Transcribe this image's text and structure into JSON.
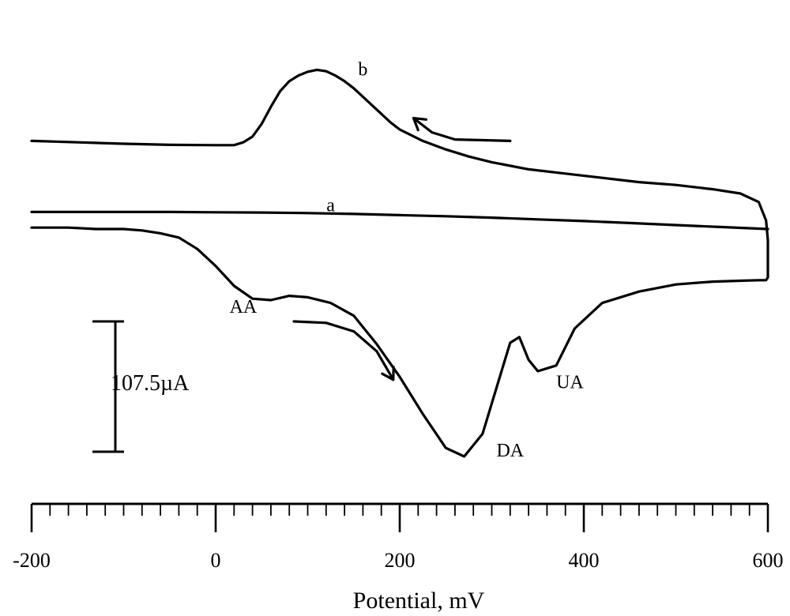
{
  "chart_data": {
    "type": "line",
    "title": "",
    "xlabel": "Potential, mV",
    "ylabel": "",
    "xlim": [
      -200,
      600
    ],
    "x_ticks": [
      -200,
      0,
      200,
      400,
      600
    ],
    "x_tick_labels": [
      "-200",
      "0",
      "200",
      "400",
      "600"
    ],
    "x_minor_step": 20,
    "grid": false,
    "scale_bar": {
      "label": "107.5µA",
      "value_uA": 107.5
    },
    "series": [
      {
        "name": "a",
        "x": [
          -200,
          -150,
          -100,
          -50,
          0,
          50,
          100,
          150,
          200,
          250,
          300,
          350,
          400,
          450,
          500,
          550,
          600
        ],
        "y": [
          0.6,
          0.6,
          0.6,
          0.6,
          0.59,
          0.58,
          0.56,
          0.53,
          0.49,
          0.45,
          0.4,
          0.34,
          0.28,
          0.21,
          0.14,
          0.07,
          0.0
        ]
      },
      {
        "name": "b",
        "x": [
          -200,
          -150,
          -100,
          -50,
          0,
          20,
          30,
          40,
          50,
          60,
          70,
          80,
          90,
          100,
          110,
          120,
          130,
          140,
          150,
          160,
          170,
          180,
          190,
          200,
          225,
          250,
          275,
          300,
          340,
          380,
          420,
          460,
          500,
          540,
          570,
          590,
          598,
          600,
          600,
          598,
          590,
          570,
          540,
          500,
          460,
          420,
          390,
          370,
          350,
          340,
          330,
          320,
          305,
          290,
          270,
          250,
          225,
          200,
          175,
          150,
          125,
          100,
          80,
          60,
          40,
          20,
          0,
          -20,
          -40,
          -60,
          -80,
          -100,
          -130,
          -160,
          -200
        ],
        "y": [
          3.1,
          3.05,
          3.0,
          2.96,
          2.95,
          2.95,
          3.05,
          3.25,
          3.7,
          4.3,
          4.85,
          5.2,
          5.4,
          5.53,
          5.6,
          5.55,
          5.4,
          5.2,
          4.95,
          4.65,
          4.35,
          4.05,
          3.75,
          3.5,
          3.1,
          2.8,
          2.55,
          2.35,
          2.1,
          1.95,
          1.8,
          1.65,
          1.55,
          1.4,
          1.25,
          0.95,
          0.3,
          -0.4,
          -1.7,
          -1.8,
          -1.8,
          -1.82,
          -1.85,
          -1.95,
          -2.2,
          -2.6,
          -3.5,
          -4.8,
          -5.0,
          -4.6,
          -3.8,
          -4.0,
          -5.6,
          -7.2,
          -8.0,
          -7.7,
          -6.5,
          -5.2,
          -4.05,
          -3.05,
          -2.6,
          -2.4,
          -2.35,
          -2.5,
          -2.45,
          -2.0,
          -1.3,
          -0.7,
          -0.3,
          -0.15,
          -0.05,
          0.0,
          0.0,
          0.05,
          0.05
        ]
      }
    ],
    "annotations": [
      {
        "text": "a",
        "x": 125,
        "y": 0.62
      },
      {
        "text": "b",
        "x": 160,
        "y": 5.4
      },
      {
        "text": "AA",
        "x": 30,
        "y": -2.95
      },
      {
        "text": "DA",
        "x": 320,
        "y": -8.0
      },
      {
        "text": "UA",
        "x": 385,
        "y": -5.6
      }
    ],
    "arrows": [
      {
        "direction": "reverse",
        "points": [
          [
            320,
            3.1
          ],
          [
            260,
            3.15
          ],
          [
            235,
            3.4
          ],
          [
            215,
            3.9
          ]
        ]
      },
      {
        "direction": "forward",
        "points": [
          [
            85,
            -3.25
          ],
          [
            120,
            -3.3
          ],
          [
            150,
            -3.6
          ],
          [
            175,
            -4.3
          ],
          [
            193,
            -5.3
          ]
        ]
      }
    ]
  }
}
